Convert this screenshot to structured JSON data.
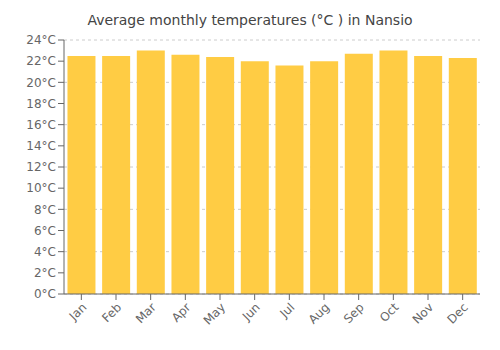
{
  "chart_data": {
    "type": "bar",
    "title": "Average monthly temperatures (°C ) in Nansio",
    "categories": [
      "Jan",
      "Feb",
      "Mar",
      "Apr",
      "May",
      "Jun",
      "Jul",
      "Aug",
      "Sep",
      "Oct",
      "Nov",
      "Dec"
    ],
    "values": [
      22.5,
      22.5,
      23.0,
      22.6,
      22.4,
      22.0,
      21.6,
      22.0,
      22.7,
      23.0,
      22.5,
      22.3
    ],
    "color": "#FFCC44",
    "ylim": [
      0,
      24
    ],
    "yticks": [
      {
        "value": 0,
        "label": "0°C"
      },
      {
        "value": 2,
        "label": "2°C"
      },
      {
        "value": 4,
        "label": "4°C"
      },
      {
        "value": 6,
        "label": "6°C"
      },
      {
        "value": 8,
        "label": "8°C"
      },
      {
        "value": 10,
        "label": "10°C"
      },
      {
        "value": 12,
        "label": "12°C"
      },
      {
        "value": 14,
        "label": "14°C"
      },
      {
        "value": 16,
        "label": "16°C"
      },
      {
        "value": 18,
        "label": "18°C"
      },
      {
        "value": 20,
        "label": "20°C"
      },
      {
        "value": 22,
        "label": "22°C"
      },
      {
        "value": 24,
        "label": "24°C"
      }
    ],
    "grid": true
  }
}
